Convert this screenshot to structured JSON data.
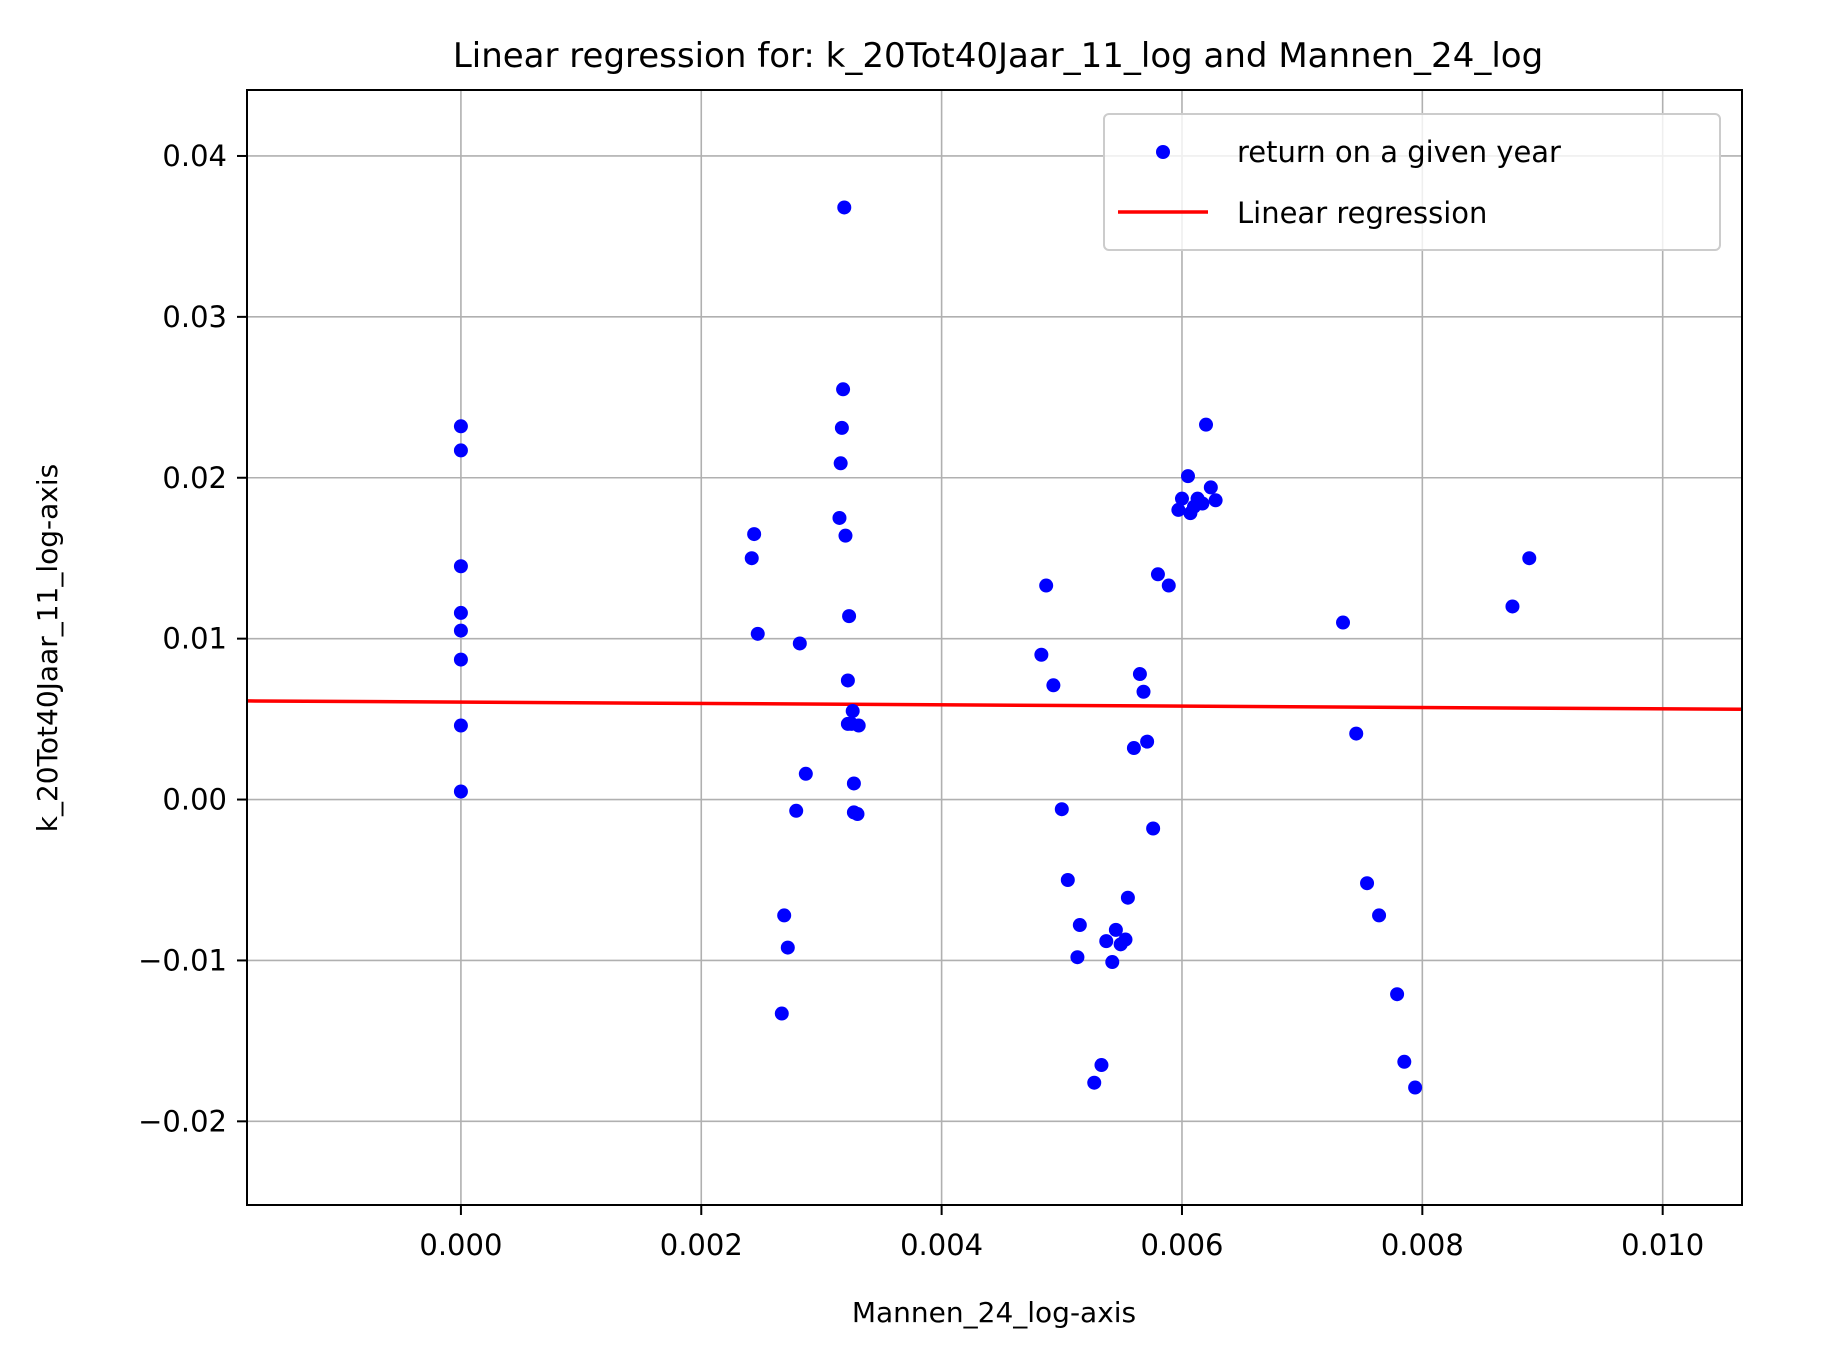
{
  "chart_data": {
    "type": "scatter",
    "title": "Linear regression for: k_20Tot40Jaar_11_log and Mannen_24_log",
    "xlabel": "Mannen_24_log-axis",
    "ylabel": "k_20Tot40Jaar_11_log-axis",
    "xlim": [
      -0.00178,
      0.01066
    ],
    "ylim": [
      -0.0252,
      0.0441
    ],
    "x_ticks": [
      0.0,
      0.002,
      0.004,
      0.006,
      0.008,
      0.01
    ],
    "x_tick_labels": [
      "0.000",
      "0.002",
      "0.004",
      "0.006",
      "0.008",
      "0.010"
    ],
    "y_ticks": [
      -0.02,
      -0.01,
      0.0,
      0.01,
      0.02,
      0.03,
      0.04
    ],
    "y_tick_labels": [
      "−0.02",
      "−0.01",
      "0.00",
      "0.01",
      "0.02",
      "0.03",
      "0.04"
    ],
    "grid": true,
    "legend_position": "top-right",
    "colors": {
      "scatter": "#0000ff",
      "regression": "#ff0000",
      "grid": "#b0b0b0",
      "axes": "#000000"
    },
    "series": [
      {
        "name": "return on a given year",
        "kind": "scatter",
        "points": [
          [
            0.0,
            0.0232
          ],
          [
            0.0,
            0.0217
          ],
          [
            0.0,
            0.0145
          ],
          [
            0.0,
            0.0116
          ],
          [
            0.0,
            0.0105
          ],
          [
            0.0,
            0.0087
          ],
          [
            0.0,
            0.0046
          ],
          [
            0.0,
            0.0005
          ],
          [
            0.00242,
            0.015
          ],
          [
            0.00244,
            0.0165
          ],
          [
            0.00247,
            0.0103
          ],
          [
            0.00267,
            -0.0133
          ],
          [
            0.00269,
            -0.0072
          ],
          [
            0.00272,
            -0.0092
          ],
          [
            0.00279,
            -0.0007
          ],
          [
            0.00282,
            0.0097
          ],
          [
            0.00287,
            0.0016
          ],
          [
            0.00315,
            0.0175
          ],
          [
            0.00316,
            0.0209
          ],
          [
            0.00317,
            0.0231
          ],
          [
            0.00318,
            0.0255
          ],
          [
            0.00319,
            0.0368
          ],
          [
            0.0032,
            0.0164
          ],
          [
            0.00322,
            0.0074
          ],
          [
            0.00323,
            0.0114
          ],
          [
            0.00322,
            0.0047
          ],
          [
            0.00326,
            0.0055
          ],
          [
            0.00325,
            0.0047
          ],
          [
            0.00327,
            0.001
          ],
          [
            0.00327,
            -0.0008
          ],
          [
            0.0033,
            -0.0009
          ],
          [
            0.00331,
            0.0046
          ],
          [
            0.00483,
            0.009
          ],
          [
            0.00487,
            0.0133
          ],
          [
            0.00493,
            0.0071
          ],
          [
            0.005,
            -0.0006
          ],
          [
            0.00505,
            -0.005
          ],
          [
            0.00513,
            -0.0098
          ],
          [
            0.00515,
            -0.0078
          ],
          [
            0.00527,
            -0.0176
          ],
          [
            0.00533,
            -0.0165
          ],
          [
            0.00537,
            -0.0088
          ],
          [
            0.00542,
            -0.0101
          ],
          [
            0.00545,
            -0.0081
          ],
          [
            0.00549,
            -0.009
          ],
          [
            0.00553,
            -0.0087
          ],
          [
            0.00555,
            -0.0061
          ],
          [
            0.0056,
            0.0032
          ],
          [
            0.00565,
            0.0078
          ],
          [
            0.00568,
            0.0067
          ],
          [
            0.00571,
            0.0036
          ],
          [
            0.00576,
            -0.0018
          ],
          [
            0.0058,
            0.014
          ],
          [
            0.00589,
            0.0133
          ],
          [
            0.00597,
            0.018
          ],
          [
            0.006,
            0.0187
          ],
          [
            0.00605,
            0.0201
          ],
          [
            0.00607,
            0.0178
          ],
          [
            0.0061,
            0.0182
          ],
          [
            0.00613,
            0.0187
          ],
          [
            0.00617,
            0.0184
          ],
          [
            0.0062,
            0.0233
          ],
          [
            0.00624,
            0.0194
          ],
          [
            0.00628,
            0.0186
          ],
          [
            0.00734,
            0.011
          ],
          [
            0.00745,
            0.0041
          ],
          [
            0.00754,
            -0.0052
          ],
          [
            0.00764,
            -0.0072
          ],
          [
            0.00779,
            -0.0121
          ],
          [
            0.00785,
            -0.0163
          ],
          [
            0.00794,
            -0.0179
          ],
          [
            0.00875,
            0.012
          ],
          [
            0.00889,
            0.015
          ]
        ]
      },
      {
        "name": "Linear regression",
        "kind": "line",
        "points": [
          [
            -0.00178,
            0.00613
          ],
          [
            0.01066,
            0.00561
          ]
        ]
      }
    ]
  }
}
